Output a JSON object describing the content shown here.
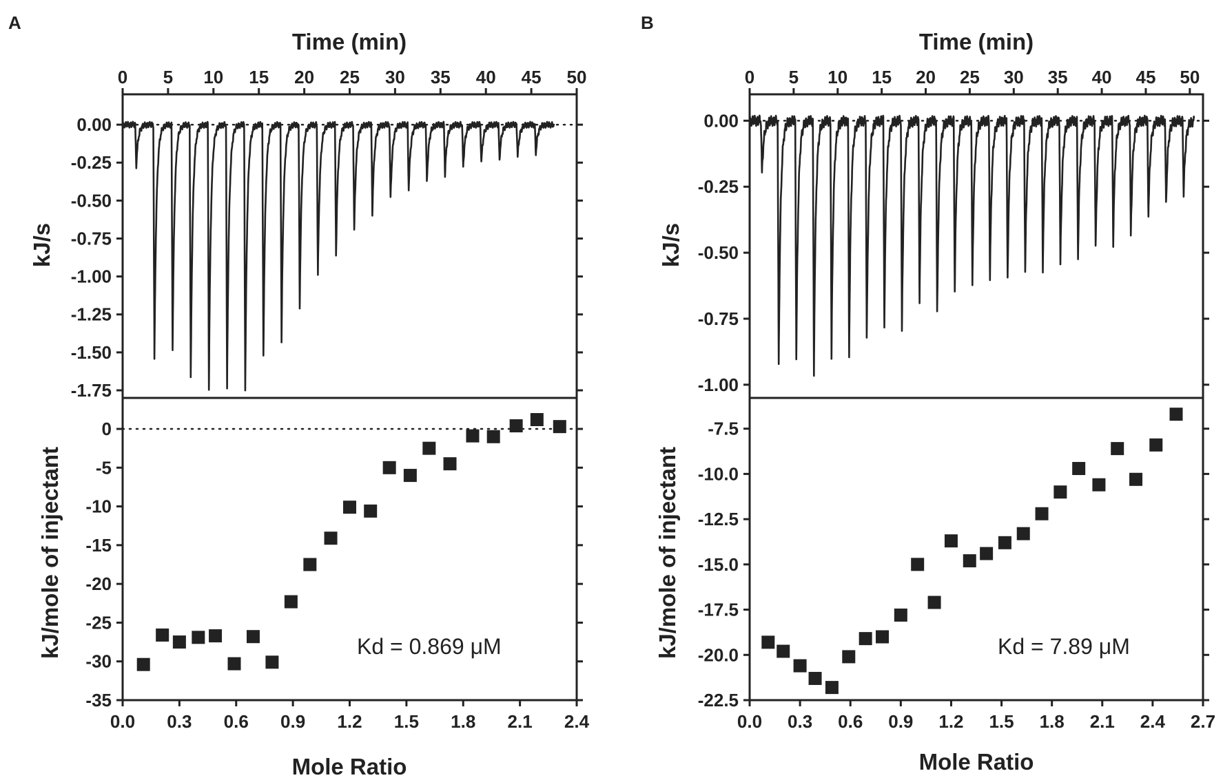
{
  "chart_data": [
    {
      "panel": "A",
      "thermogram": {
        "type": "line",
        "x_label": "Time (min)",
        "y_label": "kJ/s",
        "x_range": [
          0,
          50
        ],
        "y_range": [
          -1.8,
          0.2
        ],
        "x_ticks": [
          "0",
          "5",
          "10",
          "15",
          "20",
          "25",
          "30",
          "35",
          "40",
          "45",
          "50"
        ],
        "y_ticks": [
          "0.00",
          "-0.25",
          "-0.50",
          "-0.75",
          "-1.00",
          "-1.25",
          "-1.50",
          "-1.75"
        ],
        "baseline": 0,
        "duration": 47.5,
        "injection_times": [
          1.5,
          3.5,
          5.5,
          7.5,
          9.5,
          11.5,
          13.5,
          15.5,
          17.5,
          19.5,
          21.5,
          23.5,
          25.5,
          27.5,
          29.5,
          31.5,
          33.5,
          35.5,
          37.5,
          39.5,
          41.5,
          43.5,
          45.5
        ],
        "peak_minima": [
          -0.27,
          -1.55,
          -1.48,
          -1.68,
          -1.73,
          -1.74,
          -1.75,
          -1.53,
          -1.43,
          -1.2,
          -1.0,
          -0.86,
          -0.7,
          -0.58,
          -0.49,
          -0.43,
          -0.38,
          -0.33,
          -0.28,
          -0.25,
          -0.23,
          -0.21,
          -0.19
        ]
      },
      "isotherm": {
        "type": "scatter",
        "x_label": "Mole Ratio",
        "y_label": "kJ/mole of injectant",
        "x_range": [
          0,
          2.4
        ],
        "y_range": [
          -35,
          4
        ],
        "x_ticks": [
          "0.0",
          "0.3",
          "0.6",
          "0.9",
          "1.2",
          "1.5",
          "1.8",
          "2.1",
          "2.4"
        ],
        "y_ticks": [
          "0",
          "-5",
          "-10",
          "-15",
          "-20",
          "-25",
          "-30",
          "-35"
        ],
        "zero_line": 0,
        "x": [
          0.11,
          0.21,
          0.3,
          0.4,
          0.49,
          0.59,
          0.69,
          0.79,
          0.89,
          0.99,
          1.1,
          1.2,
          1.31,
          1.41,
          1.52,
          1.62,
          1.73,
          1.85,
          1.96,
          2.08,
          2.19,
          2.31
        ],
        "y": [
          -30.4,
          -26.6,
          -27.5,
          -26.9,
          -26.7,
          -30.3,
          -26.8,
          -30.1,
          -22.3,
          -17.5,
          -14.1,
          -10.1,
          -10.6,
          -5.0,
          -6.0,
          -2.5,
          -4.5,
          -0.9,
          -1.0,
          0.4,
          1.2,
          0.3
        ],
        "annotation": "Kd = 0.869 μM"
      }
    },
    {
      "panel": "B",
      "thermogram": {
        "type": "line",
        "x_label": "Time (min)",
        "y_label": "kJ/s",
        "x_range": [
          0,
          51.5
        ],
        "y_range": [
          -1.05,
          0.1
        ],
        "x_ticks": [
          "0",
          "5",
          "10",
          "15",
          "20",
          "25",
          "30",
          "35",
          "40",
          "45",
          "50"
        ],
        "y_ticks": [
          "0.00",
          "-0.25",
          "-0.50",
          "-0.75",
          "-1.00"
        ],
        "baseline": 0,
        "duration": 50.5,
        "injection_times": [
          1.4,
          3.3,
          5.3,
          7.3,
          9.3,
          11.3,
          13.3,
          15.3,
          17.3,
          19.3,
          21.3,
          23.3,
          25.3,
          27.3,
          29.3,
          31.3,
          33.3,
          35.3,
          37.3,
          39.3,
          41.3,
          43.3,
          45.3,
          47.3,
          49.3
        ],
        "peak_minima": [
          -0.2,
          -0.93,
          -0.91,
          -0.96,
          -0.9,
          -0.89,
          -0.84,
          -0.77,
          -0.8,
          -0.68,
          -0.74,
          -0.64,
          -0.62,
          -0.6,
          -0.6,
          -0.58,
          -0.56,
          -0.55,
          -0.52,
          -0.49,
          -0.46,
          -0.44,
          -0.36,
          -0.32,
          -0.28
        ]
      },
      "isotherm": {
        "type": "scatter",
        "x_label": "Mole Ratio",
        "y_label": "kJ/mole of injectant",
        "x_range": [
          0,
          2.7
        ],
        "y_range": [
          -22.5,
          -5.8
        ],
        "x_ticks": [
          "0.0",
          "0.3",
          "0.6",
          "0.9",
          "1.2",
          "1.5",
          "1.8",
          "2.1",
          "2.4",
          "2.7"
        ],
        "y_ticks": [
          "-7.5",
          "-10.0",
          "-12.5",
          "-15.0",
          "-17.5",
          "-20.0",
          "-22.5"
        ],
        "x": [
          0.11,
          0.2,
          0.3,
          0.39,
          0.49,
          0.59,
          0.69,
          0.79,
          0.9,
          1.0,
          1.1,
          1.2,
          1.31,
          1.41,
          1.52,
          1.63,
          1.74,
          1.85,
          1.96,
          2.08,
          2.19,
          2.3,
          2.42,
          2.54
        ],
        "y": [
          -19.3,
          -19.8,
          -20.6,
          -21.3,
          -21.8,
          -20.1,
          -19.1,
          -19.0,
          -17.8,
          -15.0,
          -17.1,
          -13.7,
          -14.8,
          -14.4,
          -13.8,
          -13.3,
          -12.2,
          -11.0,
          -9.7,
          -10.6,
          -8.6,
          -10.3,
          -8.4,
          -6.7
        ],
        "annotation": "Kd = 7.89 μM"
      }
    }
  ]
}
